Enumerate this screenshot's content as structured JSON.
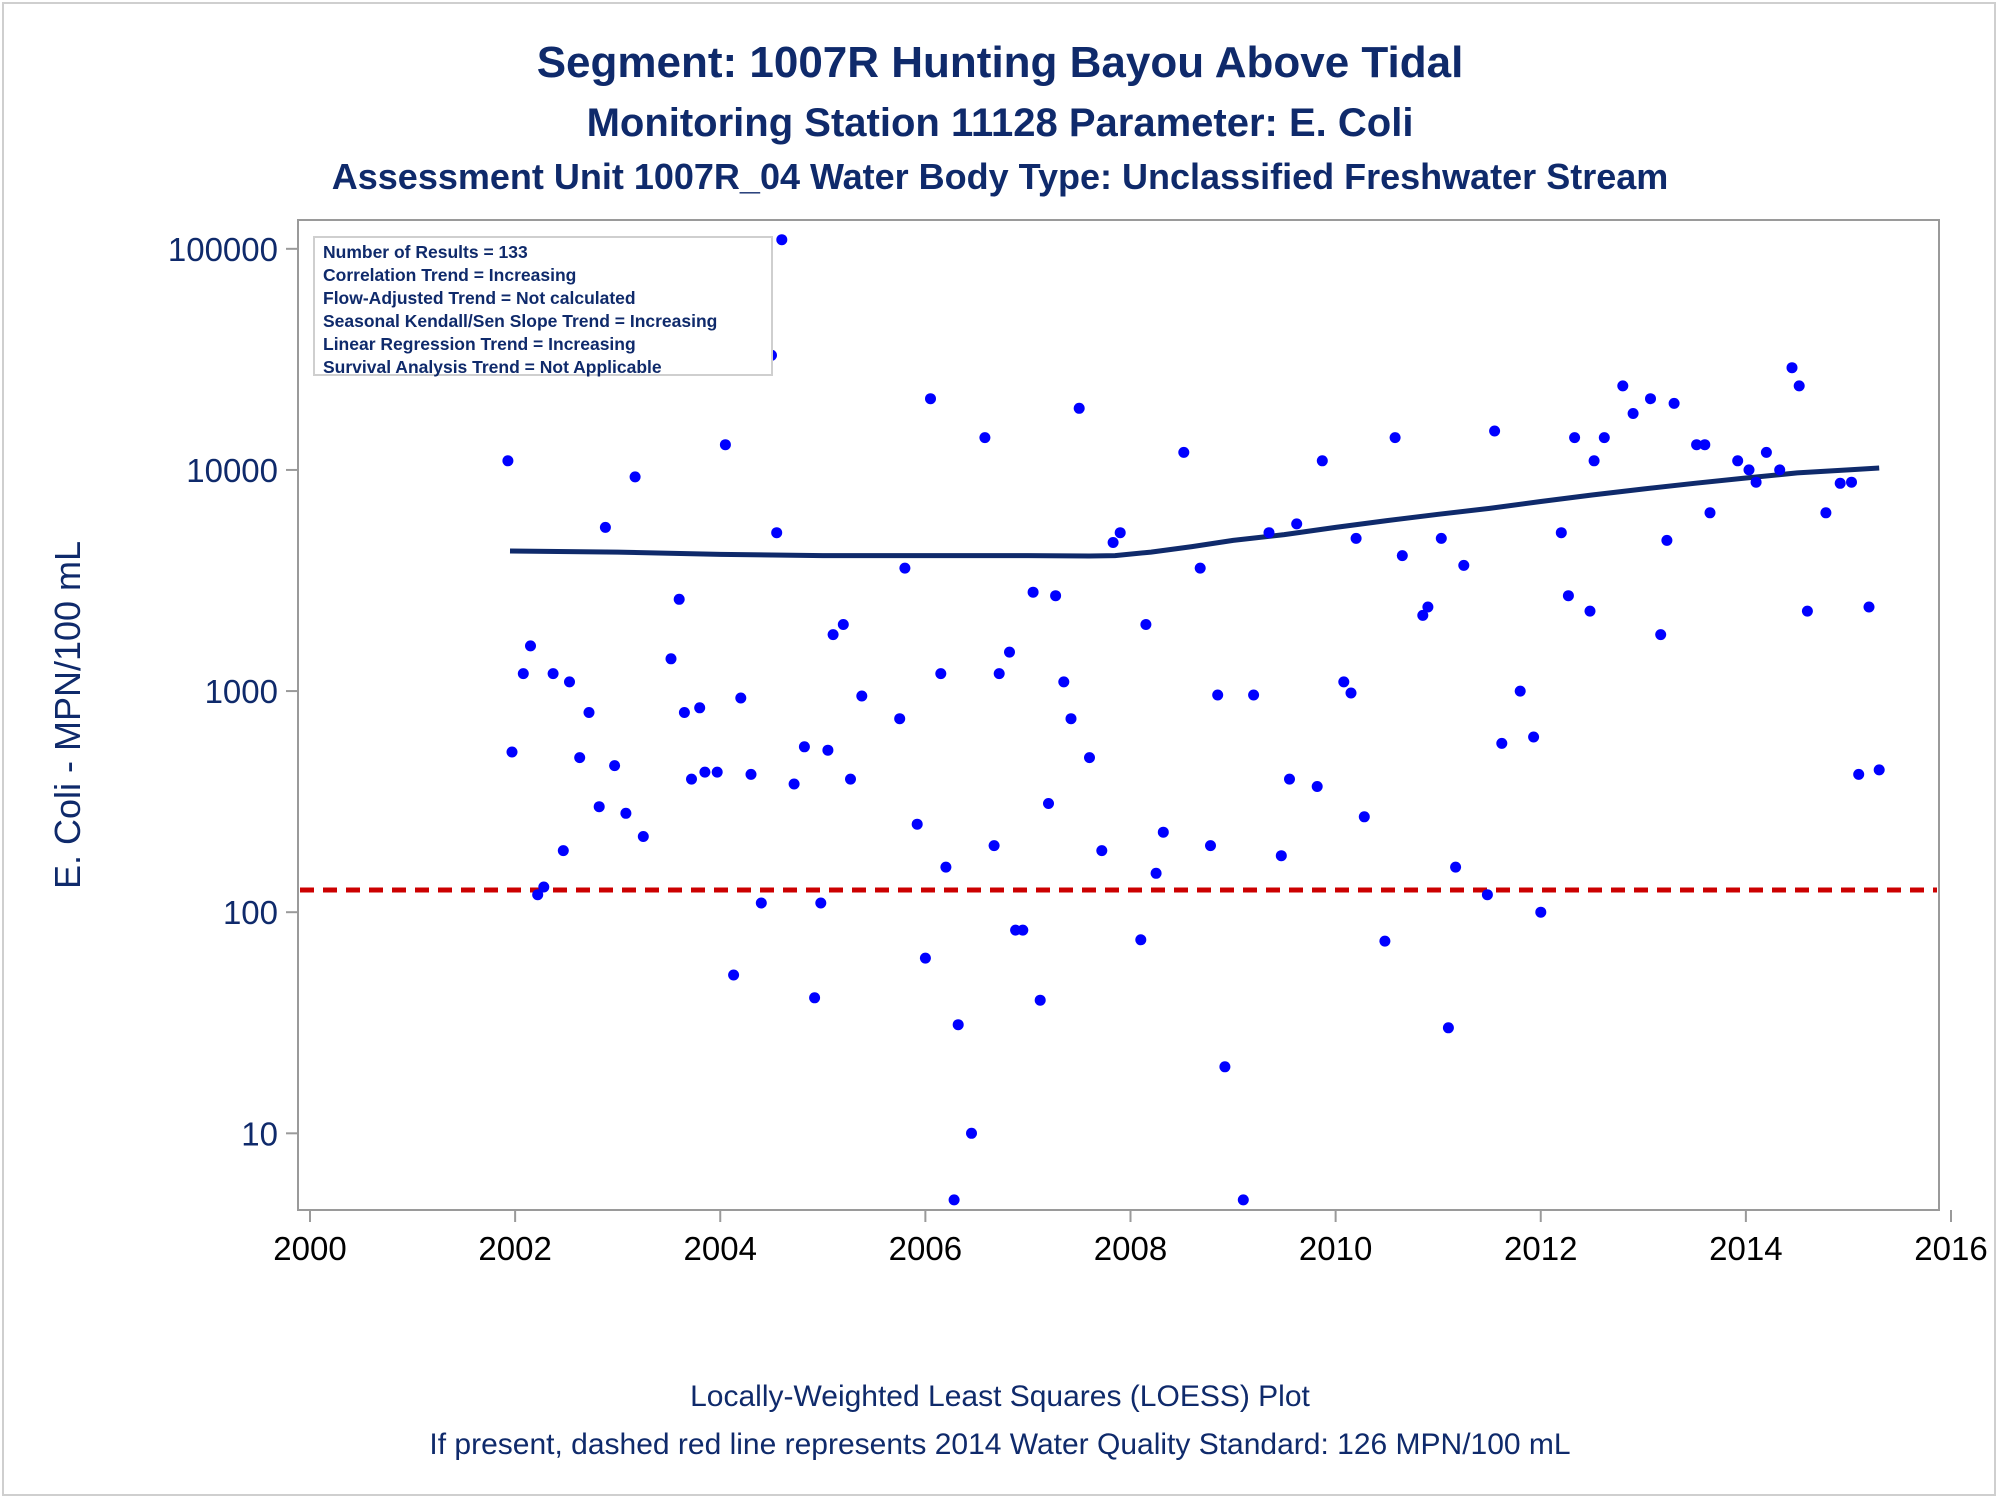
{
  "title": "Segment: 1007R  Hunting Bayou Above Tidal",
  "subtitle1": "Monitoring Station 11128 Parameter: E. Coli",
  "subtitle2": "Assessment Unit 1007R_04   Water Body Type: Unclassified Freshwater Stream",
  "footnote1": "Locally-Weighted Least Squares (LOESS) Plot",
  "footnote2": "If present, dashed red line represents 2014 Water Quality Standard: 126 MPN/100 mL",
  "stats": [
    "Number of Results = 133",
    "Correlation Trend = Increasing",
    "Flow-Adjusted Trend = Not calculated",
    "Seasonal Kendall/Sen Slope Trend = Increasing",
    "Linear Regression Trend = Increasing",
    "Survival Analysis Trend = Not Applicable"
  ],
  "colors": {
    "points": "#0000ff",
    "trend": "#0f2a6b",
    "standard": "#cc0000",
    "text": "#0f2a6b",
    "axis": "#9a9a9a"
  },
  "chart_data": {
    "type": "scatter",
    "title": "Segment: 1007R  Hunting Bayou Above Tidal",
    "xlabel": "",
    "ylabel": "E. Coli - MPN/100 mL",
    "xlim": [
      2000,
      2016
    ],
    "ylim": [
      4.5,
      135000
    ],
    "yscale": "log",
    "xticks": [
      2000,
      2002,
      2004,
      2006,
      2008,
      2010,
      2012,
      2014,
      2016
    ],
    "yticks": [
      10,
      100,
      1000,
      10000,
      100000
    ],
    "grid": false,
    "legend": "top-left",
    "standard_line": 126,
    "points": [
      [
        2001.93,
        11000
      ],
      [
        2001.97,
        530
      ],
      [
        2002.08,
        1200
      ],
      [
        2002.15,
        1600
      ],
      [
        2002.22,
        120
      ],
      [
        2002.28,
        130
      ],
      [
        2002.37,
        1200
      ],
      [
        2002.47,
        190
      ],
      [
        2002.53,
        1100
      ],
      [
        2002.63,
        500
      ],
      [
        2002.72,
        800
      ],
      [
        2002.82,
        300
      ],
      [
        2002.88,
        5500
      ],
      [
        2002.97,
        460
      ],
      [
        2003.08,
        280
      ],
      [
        2003.17,
        9300
      ],
      [
        2003.25,
        220
      ],
      [
        2003.52,
        1400
      ],
      [
        2003.6,
        2600
      ],
      [
        2003.65,
        800
      ],
      [
        2003.72,
        400
      ],
      [
        2003.8,
        840
      ],
      [
        2003.85,
        430
      ],
      [
        2003.97,
        430
      ],
      [
        2004.05,
        13000
      ],
      [
        2004.13,
        52
      ],
      [
        2004.2,
        930
      ],
      [
        2004.3,
        420
      ],
      [
        2004.4,
        110
      ],
      [
        2004.5,
        33000
      ],
      [
        2004.55,
        5200
      ],
      [
        2004.6,
        110000
      ],
      [
        2004.72,
        380
      ],
      [
        2004.82,
        560
      ],
      [
        2004.92,
        41
      ],
      [
        2004.98,
        110
      ],
      [
        2005.05,
        540
      ],
      [
        2005.1,
        1800
      ],
      [
        2005.2,
        2000
      ],
      [
        2005.27,
        400
      ],
      [
        2005.38,
        950
      ],
      [
        2005.75,
        750
      ],
      [
        2005.8,
        3600
      ],
      [
        2005.92,
        250
      ],
      [
        2006.0,
        62
      ],
      [
        2006.05,
        21000
      ],
      [
        2006.15,
        1200
      ],
      [
        2006.2,
        160
      ],
      [
        2006.28,
        5
      ],
      [
        2006.32,
        31
      ],
      [
        2006.45,
        10
      ],
      [
        2006.58,
        14000
      ],
      [
        2006.67,
        200
      ],
      [
        2006.72,
        1200
      ],
      [
        2006.82,
        1500
      ],
      [
        2006.88,
        83
      ],
      [
        2006.95,
        83
      ],
      [
        2007.05,
        2800
      ],
      [
        2007.12,
        40
      ],
      [
        2007.2,
        310
      ],
      [
        2007.27,
        2700
      ],
      [
        2007.35,
        1100
      ],
      [
        2007.42,
        750
      ],
      [
        2007.5,
        19000
      ],
      [
        2007.6,
        500
      ],
      [
        2007.72,
        190
      ],
      [
        2007.83,
        4700
      ],
      [
        2007.9,
        5200
      ],
      [
        2008.1,
        75
      ],
      [
        2008.15,
        2000
      ],
      [
        2008.25,
        150
      ],
      [
        2008.32,
        230
      ],
      [
        2008.52,
        12000
      ],
      [
        2008.68,
        3600
      ],
      [
        2008.78,
        200
      ],
      [
        2008.85,
        960
      ],
      [
        2008.92,
        20
      ],
      [
        2009.1,
        5
      ],
      [
        2009.2,
        960
      ],
      [
        2009.35,
        5200
      ],
      [
        2009.47,
        180
      ],
      [
        2009.55,
        400
      ],
      [
        2009.62,
        5700
      ],
      [
        2009.82,
        370
      ],
      [
        2009.87,
        11000
      ],
      [
        2010.08,
        1100
      ],
      [
        2010.15,
        980
      ],
      [
        2010.2,
        4900
      ],
      [
        2010.28,
        270
      ],
      [
        2010.48,
        74
      ],
      [
        2010.58,
        14000
      ],
      [
        2010.65,
        4100
      ],
      [
        2010.85,
        2200
      ],
      [
        2010.9,
        2400
      ],
      [
        2011.03,
        4900
      ],
      [
        2011.1,
        30
      ],
      [
        2011.17,
        160
      ],
      [
        2011.25,
        3700
      ],
      [
        2011.48,
        120
      ],
      [
        2011.55,
        15000
      ],
      [
        2011.62,
        580
      ],
      [
        2011.8,
        1000
      ],
      [
        2011.93,
        620
      ],
      [
        2012.0,
        100
      ],
      [
        2012.2,
        5200
      ],
      [
        2012.27,
        2700
      ],
      [
        2012.33,
        14000
      ],
      [
        2012.48,
        2300
      ],
      [
        2012.52,
        11000
      ],
      [
        2012.62,
        14000
      ],
      [
        2012.8,
        24000
      ],
      [
        2012.9,
        18000
      ],
      [
        2013.07,
        21000
      ],
      [
        2013.17,
        1800
      ],
      [
        2013.23,
        4800
      ],
      [
        2013.3,
        20000
      ],
      [
        2013.52,
        13000
      ],
      [
        2013.6,
        13000
      ],
      [
        2013.65,
        6400
      ],
      [
        2013.92,
        11000
      ],
      [
        2014.03,
        10000
      ],
      [
        2014.1,
        8800
      ],
      [
        2014.2,
        12000
      ],
      [
        2014.33,
        10000
      ],
      [
        2014.45,
        29000
      ],
      [
        2014.52,
        24000
      ],
      [
        2014.6,
        2300
      ],
      [
        2014.78,
        6400
      ],
      [
        2014.92,
        8700
      ],
      [
        2015.03,
        8800
      ],
      [
        2015.1,
        420
      ],
      [
        2015.2,
        2400
      ],
      [
        2015.3,
        440
      ]
    ],
    "trend": [
      [
        2001.95,
        4300
      ],
      [
        2003.0,
        4250
      ],
      [
        2004.0,
        4150
      ],
      [
        2005.0,
        4100
      ],
      [
        2006.0,
        4100
      ],
      [
        2007.0,
        4100
      ],
      [
        2007.6,
        4080
      ],
      [
        2007.85,
        4100
      ],
      [
        2008.2,
        4250
      ],
      [
        2008.6,
        4500
      ],
      [
        2009.0,
        4800
      ],
      [
        2009.5,
        5100
      ],
      [
        2010.0,
        5500
      ],
      [
        2010.5,
        5900
      ],
      [
        2011.0,
        6300
      ],
      [
        2011.5,
        6700
      ],
      [
        2012.0,
        7200
      ],
      [
        2012.5,
        7700
      ],
      [
        2013.0,
        8200
      ],
      [
        2013.5,
        8700
      ],
      [
        2014.0,
        9200
      ],
      [
        2014.5,
        9700
      ],
      [
        2015.0,
        10000
      ],
      [
        2015.3,
        10200
      ]
    ]
  }
}
